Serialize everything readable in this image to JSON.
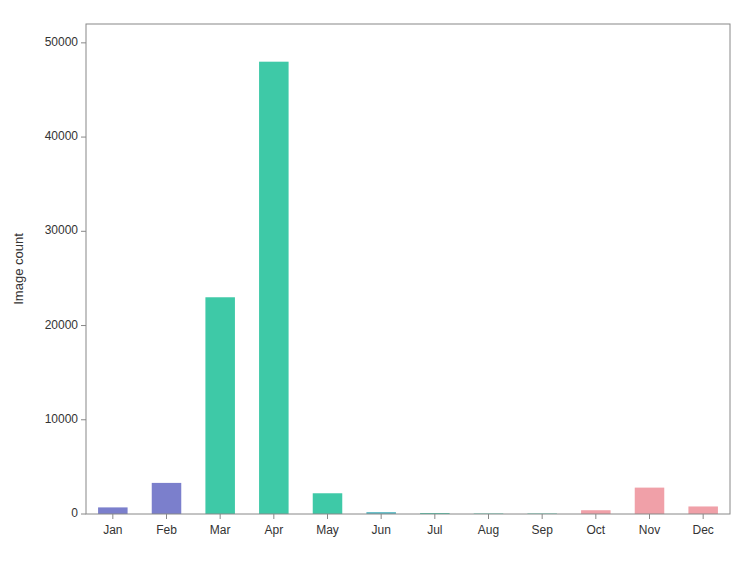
{
  "chart_data": {
    "type": "bar",
    "categories": [
      "Jan",
      "Feb",
      "Mar",
      "Apr",
      "May",
      "Jun",
      "Jul",
      "Aug",
      "Sep",
      "Oct",
      "Nov",
      "Dec"
    ],
    "values": [
      700,
      3300,
      23000,
      48000,
      2200,
      200,
      100,
      50,
      50,
      400,
      2800,
      800
    ],
    "colors": [
      "#7b7fcc",
      "#7b7fcc",
      "#3ec9a7",
      "#3ec9a7",
      "#3ec9a7",
      "#5ab8c4",
      "#3ec9a7",
      "#3ec9a7",
      "#3ec9a7",
      "#f0a0a8",
      "#f0a0a8",
      "#f0a0a8"
    ],
    "ylabel": "Image count",
    "ylim": [
      0,
      52000
    ],
    "yticks": [
      0,
      10000,
      20000,
      30000,
      40000,
      50000
    ],
    "grid": false
  }
}
